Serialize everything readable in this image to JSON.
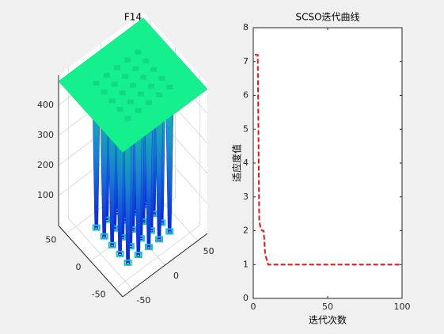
{
  "chart_data": [
    {
      "type": "surface",
      "title": "F14",
      "xlim": [
        -65,
        65
      ],
      "ylim": [
        -65,
        65
      ],
      "zlim": [
        0,
        500
      ],
      "xticks": [
        -50,
        0,
        50
      ],
      "yticks": [
        -50,
        0,
        50
      ],
      "zticks": [
        100,
        200,
        300,
        400
      ],
      "grid": true,
      "color": "#14f08e"
    },
    {
      "type": "line",
      "title": "SCSO迭代曲线",
      "xlabel": "迭代次数",
      "ylabel": "适应度值",
      "x": [
        1,
        3,
        4,
        5,
        6,
        7,
        8,
        10,
        100
      ],
      "series": [
        {
          "color": "#e8161b",
          "values": [
            7.2,
            7.2,
            2.3,
            2.05,
            2.0,
            2.0,
            1.3,
            1.0,
            1.0
          ]
        }
      ],
      "xlim": [
        0,
        100
      ],
      "ylim": [
        0,
        8
      ],
      "xticks": [
        0,
        50,
        100
      ],
      "yticks": [
        0,
        1,
        2,
        3,
        4,
        5,
        6,
        7,
        8
      ]
    }
  ]
}
